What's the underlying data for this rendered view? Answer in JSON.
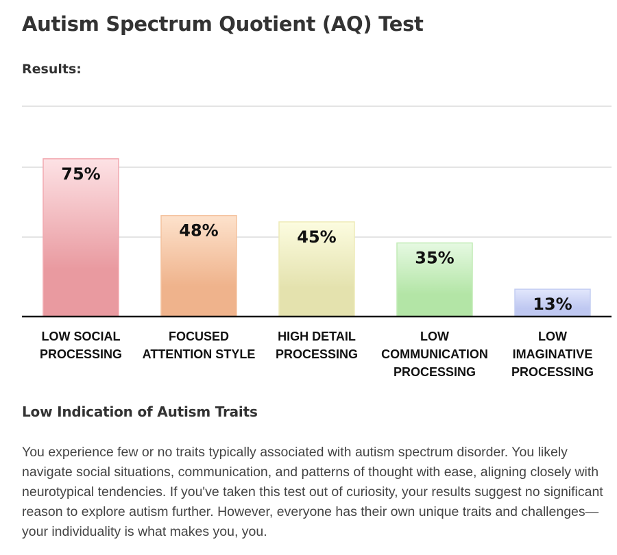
{
  "title": "Autism Spectrum Quotient (AQ) Test",
  "results_label": "Results:",
  "chart_data": {
    "type": "bar",
    "categories": [
      [
        "LOW SOCIAL",
        "PROCESSING"
      ],
      [
        "FOCUSED",
        "ATTENTION STYLE"
      ],
      [
        "HIGH DETAIL",
        "PROCESSING"
      ],
      [
        "LOW",
        "COMMUNICATION",
        "PROCESSING"
      ],
      [
        "LOW",
        "IMAGINATIVE",
        "PROCESSING"
      ]
    ],
    "values": [
      75,
      48,
      45,
      35,
      13
    ],
    "value_labels": [
      "75%",
      "48%",
      "45%",
      "35%",
      "13%"
    ],
    "ylim": [
      0,
      100
    ],
    "grid": true,
    "colors": [
      [
        "#fde2e5",
        "#e99aa0",
        "#f2a9b0"
      ],
      [
        "#fde2cc",
        "#efb38c",
        "#f4c29e"
      ],
      [
        "#fcfce0",
        "#e4e2ae",
        "#eeebb8"
      ],
      [
        "#e6f9e2",
        "#b3e5a6",
        "#c2ecb6"
      ],
      [
        "#e2e7fc",
        "#bfc8f1",
        "#c4cdf2"
      ]
    ]
  },
  "result_heading": "Low Indication of Autism Traits",
  "result_text": "You experience few or no traits typically associated with autism spectrum disorder. You likely navigate social situations, communication, and patterns of thought with ease, aligning closely with neurotypical tendencies. If you've taken this test out of curiosity, your results suggest no significant reason to explore autism further. However, everyone has their own unique traits and challenges—your individuality is what makes you, you."
}
